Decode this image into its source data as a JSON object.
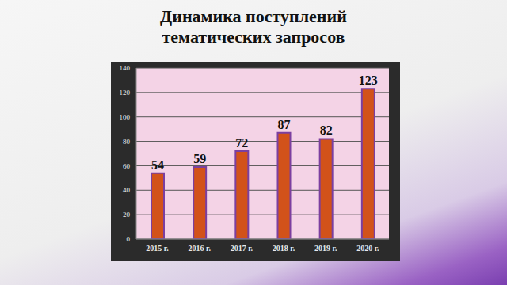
{
  "chart_data": {
    "type": "bar",
    "title": "Динамика поступлений тематических запросов",
    "categories": [
      "2015 г.",
      "2016 г.",
      "2017 г.",
      "2018 г.",
      "2019 г.",
      "2020 г."
    ],
    "values": [
      54,
      59,
      72,
      87,
      82,
      123
    ],
    "color": "#d2521a",
    "ylim": [
      0,
      140
    ],
    "yticks": [
      0,
      20,
      40,
      60,
      80,
      100,
      120,
      140
    ],
    "grid": true,
    "data_labels": true
  }
}
